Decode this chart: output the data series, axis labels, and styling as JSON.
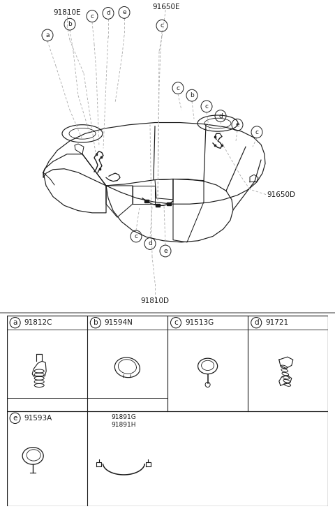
{
  "bg_color": "#ffffff",
  "line_color": "#1a1a1a",
  "gray_line": "#aaaaaa",
  "part_labels": [
    "91650E",
    "91810E",
    "91810D",
    "91650D"
  ],
  "circle_letters_left": [
    "a",
    "b",
    "c",
    "d",
    "e"
  ],
  "circle_letters_right": [
    "c",
    "d",
    "e",
    "c"
  ],
  "parts": [
    {
      "label": "a",
      "part": "91812C"
    },
    {
      "label": "b",
      "part": "91594N"
    },
    {
      "label": "c",
      "part": "91513G"
    },
    {
      "label": "d",
      "part": "91721"
    },
    {
      "label": "e",
      "part": "91593A"
    }
  ],
  "extra_label": "91891G\n91891H"
}
